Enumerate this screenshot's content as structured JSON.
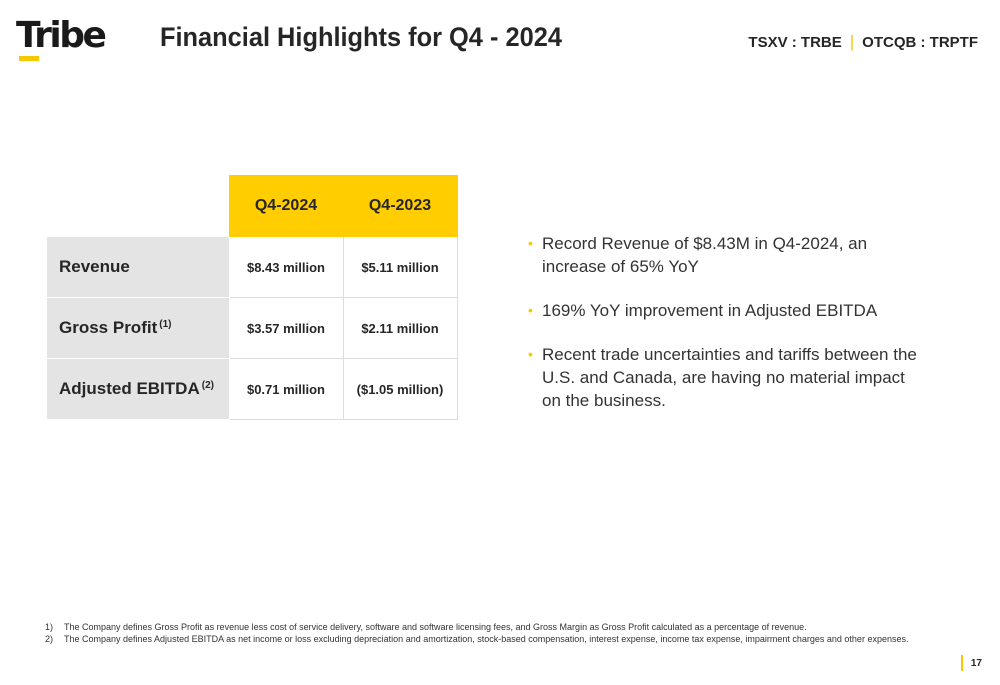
{
  "logo": {
    "text": "Tribe"
  },
  "title": "Financial Highlights for Q4 - 2024",
  "ticker": {
    "tsxv": "TSXV : TRBE",
    "separator": "|",
    "otcqb": "OTCQB : TRPTF"
  },
  "table": {
    "columns": [
      "Q4-2024",
      "Q4-2023"
    ],
    "rows": [
      {
        "label": "Revenue",
        "sup": "",
        "values": [
          "$8.43 million",
          "$5.11 million"
        ]
      },
      {
        "label": "Gross Profit",
        "sup": "(1)",
        "values": [
          "$3.57 million",
          "$2.11 million"
        ]
      },
      {
        "label": "Adjusted EBITDA",
        "sup": "(2)",
        "values": [
          "$0.71 million",
          "($1.05 million)"
        ]
      }
    ]
  },
  "bullets": [
    "Record Revenue of $8.43M in Q4-2024, an increase of 65% YoY",
    "169% YoY improvement in Adjusted EBITDA",
    "Recent trade uncertainties and tariffs between the U.S. and Canada, are having no material impact on the business."
  ],
  "footnotes": [
    {
      "num": "1)",
      "text": "The Company defines Gross Profit as revenue less cost of service delivery, software and software licensing fees, and Gross Margin as Gross Profit calculated as a percentage of revenue."
    },
    {
      "num": "2)",
      "text": "The Company defines Adjusted EBITDA as net income or loss excluding depreciation and amortization, stock-based compensation, interest expense, income tax expense, impairment charges and other expenses."
    }
  ],
  "page_number": "17",
  "colors": {
    "accent": "#ffcd00",
    "label_bg": "#e4e4e4",
    "text": "#262626"
  }
}
